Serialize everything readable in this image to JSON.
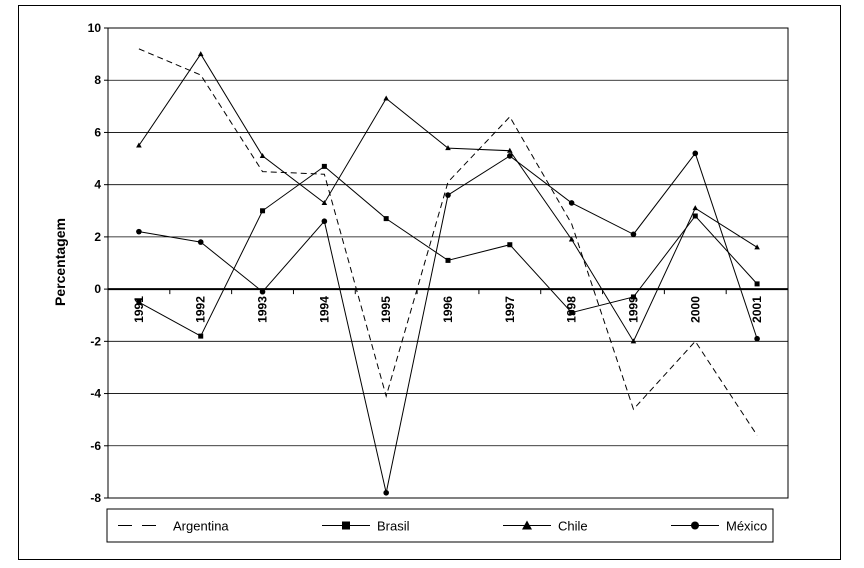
{
  "chart_data": {
    "type": "line",
    "title": "",
    "xlabel": "",
    "ylabel": "Percentagem",
    "categories": [
      "1991",
      "1992",
      "1993",
      "1994",
      "1995",
      "1996",
      "1997",
      "1998",
      "1999",
      "2000",
      "2001"
    ],
    "ylim": [
      -8,
      10
    ],
    "yticks": [
      10,
      8,
      6,
      4,
      2,
      0,
      -2,
      -4,
      -6,
      -8
    ],
    "grid": true,
    "legend_position": "bottom",
    "series": [
      {
        "name": "Argentina",
        "marker": "none",
        "dash": "dashed",
        "values": [
          9.2,
          8.2,
          4.5,
          4.4,
          -4.1,
          4.1,
          6.6,
          2.5,
          -4.6,
          -2.0,
          -5.6
        ]
      },
      {
        "name": "Brasil",
        "marker": "square",
        "dash": "solid",
        "values": [
          -0.5,
          -1.8,
          3.0,
          4.7,
          2.7,
          1.1,
          1.7,
          -0.9,
          -0.3,
          2.8,
          0.2
        ]
      },
      {
        "name": "Chile",
        "marker": "triangle",
        "dash": "solid",
        "values": [
          5.5,
          9.0,
          5.1,
          3.3,
          7.3,
          5.4,
          5.3,
          1.9,
          -2.0,
          3.1,
          1.6
        ]
      },
      {
        "name": "México",
        "marker": "circle",
        "dash": "solid",
        "values": [
          2.2,
          1.8,
          -0.1,
          2.6,
          -7.8,
          3.6,
          5.1,
          3.3,
          2.1,
          5.2,
          -1.9
        ]
      }
    ]
  }
}
